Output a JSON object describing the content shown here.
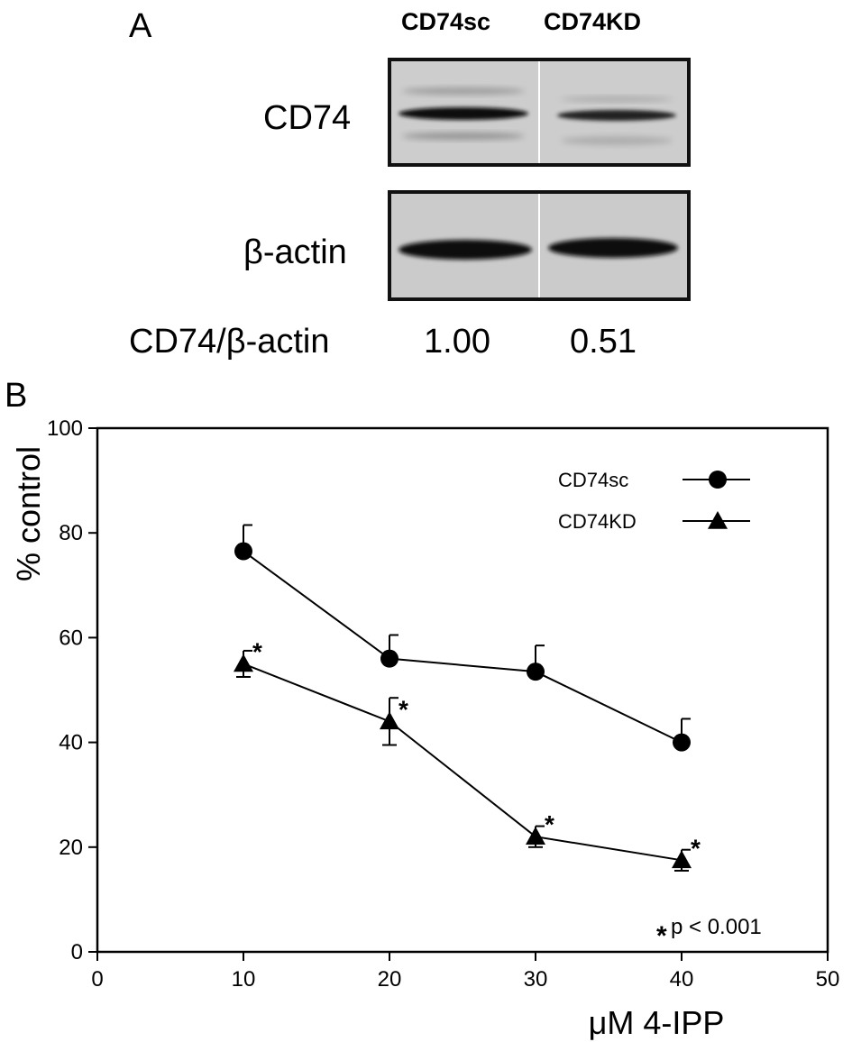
{
  "panel_a": {
    "letter": "A",
    "lanes": [
      "CD74sc",
      "CD74KD"
    ],
    "rows": [
      "CD74",
      "β-actin"
    ],
    "ratio_label": "CD74/β-actin",
    "ratios": [
      "1.00",
      "0.51"
    ]
  },
  "panel_b": {
    "letter": "B",
    "annotation": "p < 0.001",
    "annotation_star": "*"
  },
  "chart_data": {
    "type": "line",
    "title": "",
    "xlabel": "μM 4-IPP",
    "ylabel": "% control",
    "xlim": [
      0,
      50
    ],
    "ylim": [
      0,
      100
    ],
    "x_ticks": [
      0,
      10,
      20,
      30,
      40,
      50
    ],
    "y_ticks": [
      0,
      20,
      40,
      60,
      80,
      100
    ],
    "grid": false,
    "legend_position": "top-right",
    "x": [
      10,
      20,
      30,
      40
    ],
    "series": [
      {
        "name": "CD74sc",
        "marker": "circle",
        "values": [
          76.5,
          56,
          53.5,
          40
        ],
        "error": [
          5,
          4.5,
          5,
          4.5
        ],
        "significant": [
          false,
          false,
          false,
          false
        ]
      },
      {
        "name": "CD74KD",
        "marker": "triangle",
        "values": [
          55,
          44,
          22,
          17.5
        ],
        "error": [
          2.5,
          4.5,
          2,
          2
        ],
        "significant": [
          true,
          true,
          true,
          true
        ]
      }
    ]
  }
}
